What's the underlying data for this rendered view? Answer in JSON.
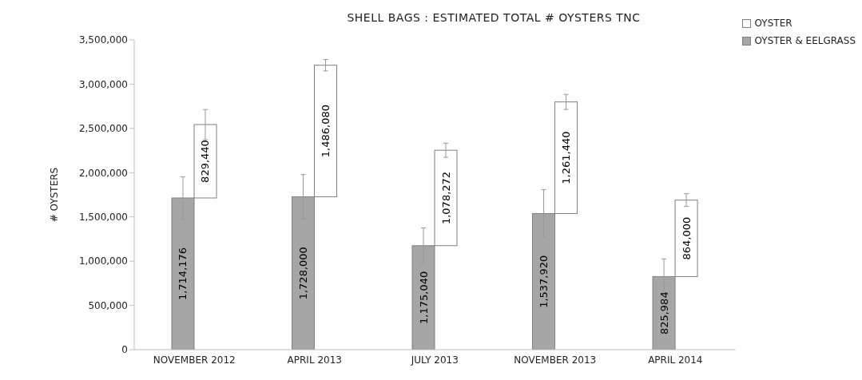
{
  "chart_data": {
    "type": "bar",
    "title": "SHELL BAGS : ESTIMATED TOTAL # OYSTERS TNC",
    "ylabel": "# OYSTERS",
    "categories": [
      "NOVEMBER 2012",
      "APRIL  2013",
      "JULY 2013",
      "NOVEMBER 2013",
      "APRIL 2014"
    ],
    "series": [
      {
        "name": "OYSTER & EELGRASS",
        "color": "#a6a6a6",
        "values": [
          1714176,
          1728000,
          1175040,
          1537920,
          825984
        ],
        "value_labels": [
          "1,714,176",
          "1,728,000",
          "1,175,040",
          "1,537,920",
          "825,984"
        ],
        "errors": [
          240000,
          250000,
          200000,
          270000,
          200000
        ]
      },
      {
        "name": "OYSTER",
        "color": "#ffffff",
        "values": [
          829440,
          1486080,
          1078272,
          1261440,
          864000
        ],
        "value_labels": [
          "829,440",
          "1,486,080",
          "1,078,272",
          "1,261,440",
          "864,000"
        ],
        "base": [
          1714176,
          1728000,
          1175040,
          1537920,
          825984
        ],
        "errors": [
          170000,
          65000,
          80000,
          85000,
          72000
        ]
      }
    ],
    "ylim": [
      0,
      3500000
    ],
    "yticks": [
      0,
      {
        "value": 500000,
        "label": "500,000"
      },
      {
        "value": 1000000,
        "label": "1,000,000"
      },
      {
        "value": 1500000,
        "label": "1,500,000"
      },
      {
        "value": 2000000,
        "label": "2,000,000"
      },
      {
        "value": 2500000,
        "label": "2,500,000"
      },
      {
        "value": 3000000,
        "label": "3,000,000"
      },
      {
        "value": 3500000,
        "label": "3,500,000"
      }
    ],
    "legend": "top right"
  }
}
